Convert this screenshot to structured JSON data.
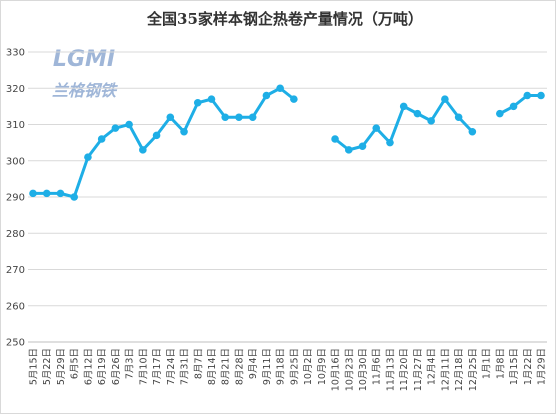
{
  "logo": {
    "mark": "LGMI",
    "name": "兰格钢铁"
  },
  "chart_data": {
    "type": "line",
    "title": "全国35家样本钢企热卷产量情况（万吨）",
    "categories": [
      "5月15日",
      "5月22日",
      "5月29日",
      "6月5日",
      "6月12日",
      "6月19日",
      "6月26日",
      "7月3日",
      "7月10日",
      "7月17日",
      "7月24日",
      "7月31日",
      "8月7日",
      "8月14日",
      "8月21日",
      "8月28日",
      "9月4日",
      "9月11日",
      "9月18日",
      "9月25日",
      "10月2日",
      "10月9日",
      "10月16日",
      "10月23日",
      "10月30日",
      "11月6日",
      "11月13日",
      "11月20日",
      "11月27日",
      "12月4日",
      "12月11日",
      "12月18日",
      "12月25日",
      "1月1日",
      "1月8日",
      "1月15日",
      "1月22日",
      "1月29日"
    ],
    "series": [
      {
        "name": "热卷产量",
        "color": "#1eaee6",
        "values": [
          291,
          291,
          291,
          290,
          301,
          306,
          309,
          310,
          303,
          307,
          312,
          308,
          316,
          317,
          312,
          312,
          312,
          318,
          320,
          317,
          null,
          null,
          306,
          303,
          304,
          309,
          305,
          315,
          313,
          311,
          317,
          312,
          308,
          null,
          313,
          315,
          318,
          318
        ]
      }
    ],
    "ylim": [
      250,
      330
    ],
    "yticks": [
      250,
      260,
      270,
      280,
      290,
      300,
      310,
      320,
      330
    ],
    "grid": true
  }
}
